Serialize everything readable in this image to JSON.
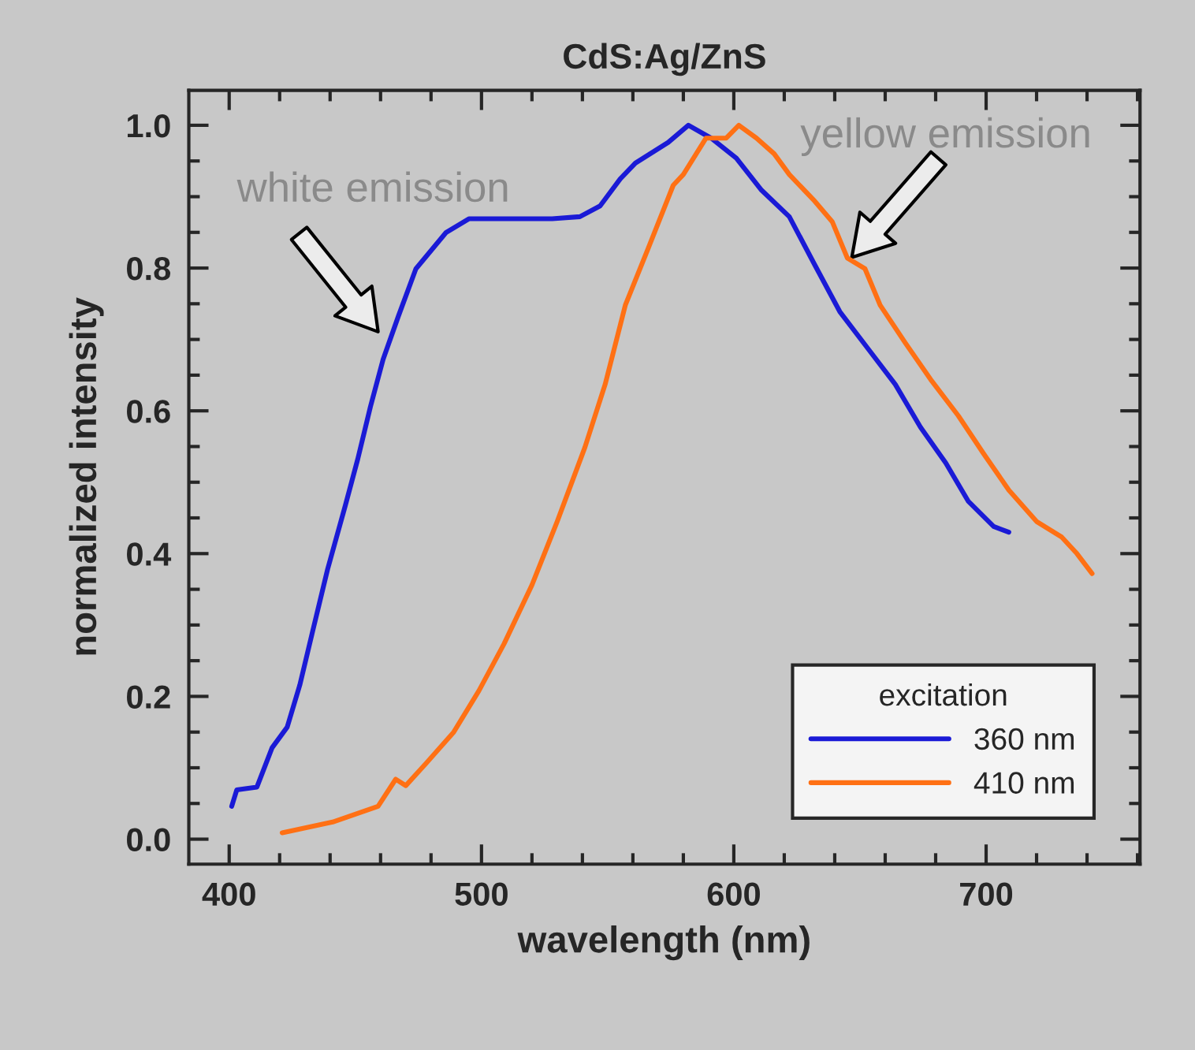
{
  "chart_data": {
    "type": "line",
    "title": "CdS:Ag/ZnS",
    "xlabel": "wavelength (nm)",
    "ylabel": "normalized intensity",
    "legend_title": "excitation",
    "xlim": [
      384,
      761
    ],
    "ylim": [
      -0.035,
      1.049
    ],
    "xticks": [
      400,
      {
        "value": 420,
        "label": null
      },
      {
        "value": 440,
        "label": null
      },
      {
        "value": 460,
        "label": null
      },
      {
        "value": 480,
        "label": null
      },
      500,
      {
        "value": 520,
        "label": null
      },
      {
        "value": 540,
        "label": null
      },
      {
        "value": 560,
        "label": null
      },
      {
        "value": 580,
        "label": null
      },
      600,
      {
        "value": 620,
        "label": null
      },
      {
        "value": 640,
        "label": null
      },
      {
        "value": 660,
        "label": null
      },
      {
        "value": 680,
        "label": null
      },
      700,
      {
        "value": 720,
        "label": null
      },
      {
        "value": 740,
        "label": null
      },
      {
        "value": 760,
        "label": null
      }
    ],
    "yticks": [
      {
        "value": 0,
        "label": "0.0"
      },
      {
        "value": 0.05,
        "label": null
      },
      {
        "value": 0.1,
        "label": null
      },
      {
        "value": 0.15,
        "label": null
      },
      0.2,
      {
        "value": 0.25,
        "label": null
      },
      {
        "value": 0.3,
        "label": null
      },
      {
        "value": 0.35,
        "label": null
      },
      0.4,
      {
        "value": 0.45,
        "label": null
      },
      {
        "value": 0.5,
        "label": null
      },
      {
        "value": 0.55,
        "label": null
      },
      0.6,
      {
        "value": 0.65,
        "label": null
      },
      {
        "value": 0.7,
        "label": null
      },
      {
        "value": 0.75,
        "label": null
      },
      0.8,
      {
        "value": 0.85,
        "label": null
      },
      {
        "value": 0.9,
        "label": null
      },
      {
        "value": 0.95,
        "label": null
      },
      {
        "value": 1.0,
        "label": "1.0"
      }
    ],
    "grid": false,
    "legend": "bottom right",
    "line_style": "solid",
    "marker": "none",
    "annotations": [
      "white emission",
      "yellow emission"
    ],
    "series": [
      {
        "name": "360 nm",
        "color": "#1a1ad6",
        "x": [
          401,
          403,
          411,
          417,
          423,
          428,
          433,
          439,
          446,
          451,
          456,
          461,
          467,
          474,
          486,
          495,
          514,
          528,
          539,
          547,
          555,
          561,
          574,
          582,
          591,
          601,
          611,
          622,
          632,
          642,
          653,
          664,
          674,
          684,
          693,
          703,
          709
        ],
        "values": [
          0.046,
          0.069,
          0.073,
          0.128,
          0.157,
          0.216,
          0.29,
          0.378,
          0.467,
          0.533,
          0.606,
          0.672,
          0.732,
          0.799,
          0.85,
          0.869,
          0.869,
          0.869,
          0.872,
          0.887,
          0.925,
          0.947,
          0.976,
          1.0,
          0.982,
          0.954,
          0.909,
          0.872,
          0.805,
          0.739,
          0.688,
          0.637,
          0.577,
          0.527,
          0.473,
          0.438,
          0.43
        ]
      },
      {
        "name": "410 nm",
        "color": "#ff7014",
        "x": [
          421,
          441,
          459,
          466,
          470,
          478,
          489,
          499,
          509,
          520,
          530,
          541,
          549,
          557,
          566,
          576,
          580,
          589,
          597,
          602,
          609,
          616,
          622,
          632,
          639,
          645,
          652,
          658,
          668,
          678,
          689,
          699,
          709,
          720,
          730,
          736,
          742
        ],
        "values": [
          0.009,
          0.024,
          0.046,
          0.084,
          0.075,
          0.106,
          0.15,
          0.208,
          0.274,
          0.356,
          0.445,
          0.549,
          0.637,
          0.748,
          0.827,
          0.916,
          0.931,
          0.982,
          0.982,
          1.0,
          0.982,
          0.96,
          0.931,
          0.894,
          0.865,
          0.814,
          0.799,
          0.748,
          0.695,
          0.644,
          0.593,
          0.54,
          0.489,
          0.445,
          0.423,
          0.4,
          0.372
        ]
      }
    ]
  }
}
